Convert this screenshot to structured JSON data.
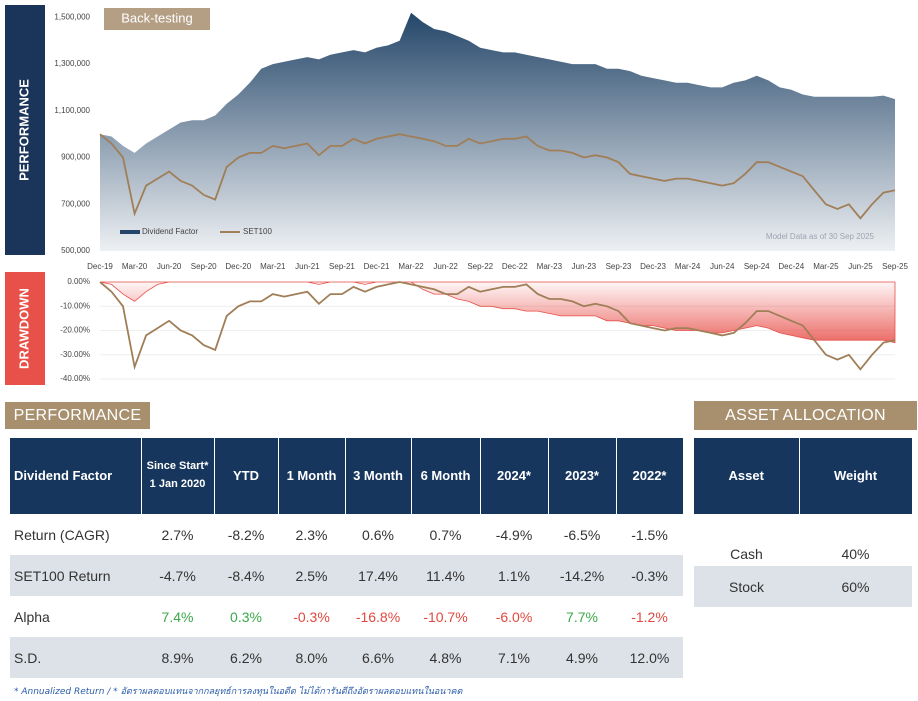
{
  "chart_data": [
    {
      "type": "line",
      "side_label": "PERFORMANCE",
      "badge": "Back-testing",
      "annotation": "Model Data as of 30 Sep 2025",
      "legend": "lower left",
      "grid": false,
      "categories": [
        "Dec-19",
        null,
        null,
        "Mar-20",
        null,
        null,
        "Jun-20",
        null,
        null,
        "Sep-20",
        null,
        null,
        "Dec-20",
        null,
        null,
        "Mar-21",
        null,
        null,
        "Jun-21",
        null,
        null,
        "Sep-21",
        null,
        null,
        "Dec-21",
        null,
        null,
        "Mar-22",
        null,
        null,
        "Jun-22",
        null,
        null,
        "Sep-22",
        null,
        null,
        "Dec-22",
        null,
        null,
        "Mar-23",
        null,
        null,
        "Jun-23",
        null,
        null,
        "Sep-23",
        null,
        null,
        "Dec-23",
        null,
        null,
        "Mar-24",
        null,
        null,
        "Jun-24",
        null,
        null,
        "Sep-24",
        null,
        null,
        "Dec-24",
        null,
        null,
        "Mar-25",
        null,
        null,
        "Jun-25",
        null,
        null,
        "Sep-25"
      ],
      "series": [
        {
          "name": "Dividend Factor",
          "color": "#244669",
          "style": "area",
          "values": [
            1000000,
            990000,
            950000,
            920000,
            960000,
            990000,
            1020000,
            1050000,
            1060000,
            1060000,
            1080000,
            1130000,
            1170000,
            1220000,
            1280000,
            1300000,
            1310000,
            1320000,
            1330000,
            1320000,
            1340000,
            1350000,
            1360000,
            1350000,
            1370000,
            1380000,
            1400000,
            1520000,
            1480000,
            1450000,
            1440000,
            1420000,
            1400000,
            1370000,
            1360000,
            1350000,
            1350000,
            1340000,
            1330000,
            1320000,
            1310000,
            1300000,
            1300000,
            1300000,
            1280000,
            1280000,
            1270000,
            1250000,
            1240000,
            1230000,
            1220000,
            1220000,
            1210000,
            1200000,
            1200000,
            1220000,
            1230000,
            1250000,
            1230000,
            1200000,
            1190000,
            1170000,
            1160000,
            1160000,
            1160000,
            1160000,
            1160000,
            1160000,
            1165000,
            1150000
          ]
        },
        {
          "name": "SET100",
          "color": "#a07e58",
          "style": "line",
          "values": [
            1000000,
            960000,
            900000,
            660000,
            780000,
            810000,
            840000,
            800000,
            780000,
            740000,
            720000,
            860000,
            900000,
            920000,
            920000,
            950000,
            940000,
            950000,
            960000,
            910000,
            950000,
            950000,
            980000,
            960000,
            980000,
            990000,
            1000000,
            990000,
            980000,
            970000,
            950000,
            950000,
            980000,
            960000,
            970000,
            980000,
            980000,
            990000,
            950000,
            930000,
            930000,
            920000,
            900000,
            910000,
            900000,
            880000,
            830000,
            820000,
            810000,
            800000,
            810000,
            810000,
            800000,
            790000,
            780000,
            790000,
            830000,
            880000,
            880000,
            860000,
            840000,
            820000,
            760000,
            700000,
            680000,
            700000,
            640000,
            700000,
            750000,
            760000
          ]
        }
      ],
      "ylim": [
        500000,
        1540000
      ],
      "yticks": [
        {
          "value": 500000,
          "label": "500,000"
        },
        {
          "value": 700000,
          "label": "700,000"
        },
        {
          "value": 900000,
          "label": "900,000"
        },
        {
          "value": 1100000,
          "label": "1,100,000"
        },
        {
          "value": 1300000,
          "label": "1,300,000"
        },
        {
          "value": 1500000,
          "label": "1,500,000"
        }
      ]
    },
    {
      "type": "line",
      "side_label": "DRAWDOWN",
      "grid": true,
      "series": [
        {
          "color": "#e8504a",
          "style": "area",
          "values": [
            0,
            -1,
            -5,
            -8,
            -4,
            -1,
            0,
            0,
            0,
            0,
            0,
            0,
            0,
            0,
            0,
            0,
            0,
            0,
            0,
            -1,
            0,
            0,
            0,
            -1,
            0,
            0,
            0,
            0,
            -3,
            -5,
            -5,
            -7,
            -8,
            -10,
            -10,
            -11,
            -11,
            -12,
            -12,
            -13,
            -14,
            -14,
            -14,
            -14,
            -16,
            -16,
            -17,
            -18,
            -18,
            -19,
            -20,
            -20,
            -20,
            -21,
            -21,
            -20,
            -19,
            -18,
            -19,
            -21,
            -22,
            -23,
            -24,
            -24,
            -24,
            -24,
            -24,
            -24,
            -24,
            -25
          ]
        },
        {
          "color": "#a07e58",
          "style": "line",
          "values": [
            0,
            -4,
            -10,
            -35,
            -22,
            -19,
            -16,
            -20,
            -22,
            -26,
            -28,
            -14,
            -10,
            -8,
            -8,
            -5,
            -6,
            -5,
            -4,
            -9,
            -5,
            -5,
            -2,
            -4,
            -2,
            -1,
            0,
            -1,
            -2,
            -3,
            -5,
            -5,
            -2,
            -4,
            -3,
            -2,
            -2,
            -1,
            -5,
            -7,
            -7,
            -8,
            -10,
            -9,
            -10,
            -12,
            -17,
            -18,
            -19,
            -20,
            -19,
            -19,
            -20,
            -21,
            -22,
            -21,
            -17,
            -12,
            -12,
            -14,
            -16,
            -18,
            -24,
            -30,
            -32,
            -30,
            -36,
            -30,
            -25,
            -24
          ]
        }
      ],
      "ylim": [
        -40,
        0
      ],
      "yticks": [
        {
          "value": 0,
          "label": "0.00%"
        },
        {
          "value": -10,
          "label": "-10.00%"
        },
        {
          "value": -20,
          "label": "-20.00%"
        },
        {
          "value": -30,
          "label": "-30.00%"
        },
        {
          "value": -40,
          "label": "-40.00%"
        }
      ]
    }
  ],
  "performance": {
    "title": "PERFORMANCE",
    "columns": [
      "Dividend Factor",
      "Since Start*\n1 Jan 2020",
      "YTD",
      "1 Month",
      "3 Month",
      "6 Month",
      "2024*",
      "2023*",
      "2022*"
    ],
    "rows": [
      {
        "cells": [
          "Return (CAGR)",
          "2.7%",
          "-8.2%",
          "2.3%",
          "0.6%",
          "0.7%",
          "-4.9%",
          "-6.5%",
          "-1.5%"
        ]
      },
      {
        "cells": [
          "SET100 Return",
          "-4.7%",
          "-8.4%",
          "2.5%",
          "17.4%",
          "11.4%",
          "1.1%",
          "-14.2%",
          "-0.3%"
        ]
      },
      {
        "cells": [
          "Alpha",
          "7.4%",
          "0.3%",
          "-0.3%",
          "-16.8%",
          "-10.7%",
          "-6.0%",
          "7.7%",
          "-1.2%"
        ],
        "colors": {
          "positive": "#3aa84a",
          "negative": "#e0483f"
        }
      },
      {
        "cells": [
          "S.D.",
          "8.9%",
          "6.2%",
          "8.0%",
          "6.6%",
          "4.8%",
          "7.1%",
          "4.9%",
          "12.0%"
        ]
      }
    ]
  },
  "asset_allocation": {
    "title": "ASSET ALLOCATION",
    "columns": [
      "Asset",
      "Weight"
    ],
    "rows": [
      [
        "Cash",
        "40%"
      ],
      [
        "Stock",
        "60%"
      ]
    ]
  },
  "footnote": "* Annualized Return / * อัตราผลตอบแทนจากกลยุทธ์การลงทุนในอดีต ไม่ได้การันตีถึงอัตราผลตอบแทนในอนาคต"
}
